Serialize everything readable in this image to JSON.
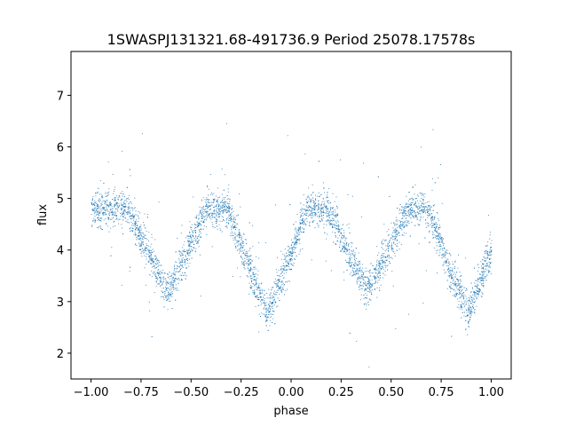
{
  "chart_data": {
    "type": "scatter",
    "title": "1SWASPJ131321.68-491736.9 Period 25078.17578s",
    "xlabel": "phase",
    "ylabel": "flux",
    "xlim": [
      -1.1,
      1.1
    ],
    "ylim": [
      1.5,
      7.85
    ],
    "xticks": [
      -1.0,
      -0.75,
      -0.5,
      -0.25,
      0.0,
      0.25,
      0.5,
      0.75,
      1.0
    ],
    "xtick_labels": [
      "−1.00",
      "−0.75",
      "−0.50",
      "−0.25",
      "0.00",
      "0.25",
      "0.50",
      "0.75",
      "1.00"
    ],
    "yticks": [
      2,
      3,
      4,
      5,
      6,
      7
    ],
    "ytick_labels": [
      "2",
      "3",
      "4",
      "5",
      "6",
      "7"
    ],
    "grid": false,
    "marker_color": "#1f77b4",
    "series": [
      {
        "baseline_flux": 4.8,
        "scatter_sigma": 0.17,
        "x_range": [
          -1.0,
          1.0
        ],
        "eclipses": [
          {
            "phase_center": -0.62,
            "min_flux": 3.2
          },
          {
            "phase_center": -0.12,
            "min_flux": 2.75
          },
          {
            "phase_center": 0.38,
            "min_flux": 3.2
          },
          {
            "phase_center": 0.88,
            "min_flux": 2.75
          }
        ],
        "eclipse_half_width": 0.2
      }
    ]
  }
}
